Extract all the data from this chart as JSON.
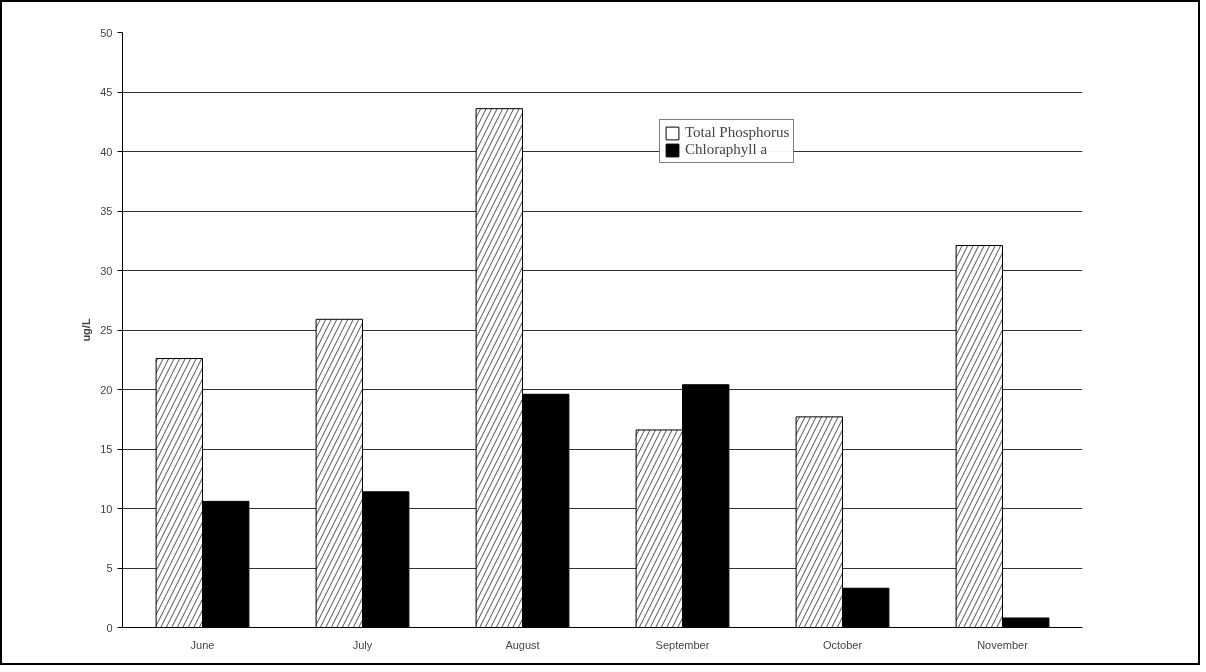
{
  "chart_data": {
    "type": "bar",
    "ylabel": "ug/L",
    "categories": [
      "June",
      "July",
      "August",
      "September",
      "October",
      "November"
    ],
    "series": [
      {
        "name": "Total Phosphorus",
        "color": "#ffffff",
        "values": [
          22.6,
          25.9,
          43.6,
          16.6,
          17.7,
          32.1
        ]
      },
      {
        "name": "Chloraphyll a",
        "color": "#000000",
        "values": [
          10.6,
          11.4,
          19.6,
          20.4,
          3.3,
          0.8
        ]
      }
    ],
    "ylim": [
      0,
      50
    ],
    "yticks": [
      0,
      5,
      10,
      15,
      20,
      25,
      30,
      35,
      40,
      45,
      50
    ],
    "grid": "y",
    "legend": "top"
  }
}
